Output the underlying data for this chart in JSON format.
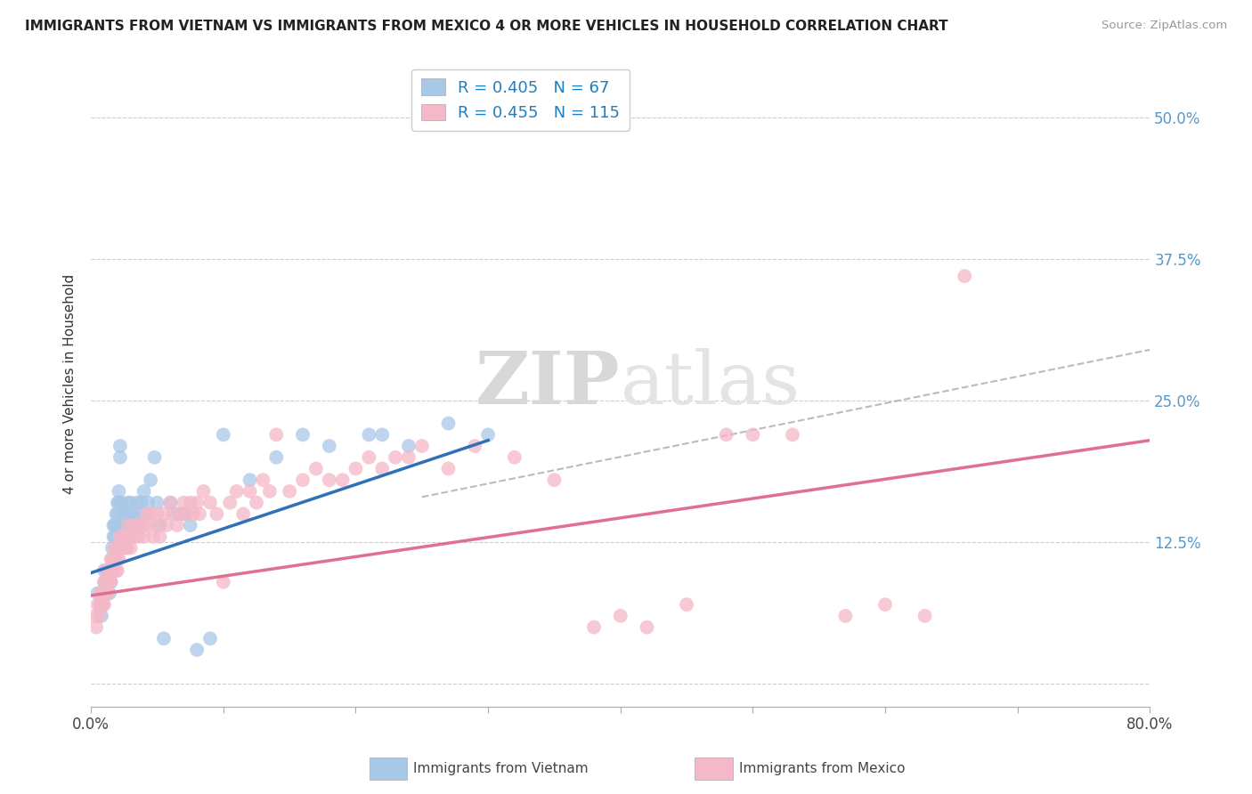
{
  "title": "IMMIGRANTS FROM VIETNAM VS IMMIGRANTS FROM MEXICO 4 OR MORE VEHICLES IN HOUSEHOLD CORRELATION CHART",
  "source": "Source: ZipAtlas.com",
  "ylabel": "4 or more Vehicles in Household",
  "xlim": [
    0.0,
    0.8
  ],
  "ylim": [
    -0.02,
    0.55
  ],
  "xticks": [
    0.0,
    0.1,
    0.2,
    0.3,
    0.4,
    0.5,
    0.6,
    0.7,
    0.8
  ],
  "xticklabels": [
    "0.0%",
    "",
    "",
    "",
    "",
    "",
    "",
    "",
    "80.0%"
  ],
  "yticks_left": [
    0.0,
    0.125,
    0.25,
    0.375,
    0.5
  ],
  "yticks_right": [
    0.0,
    0.125,
    0.25,
    0.375,
    0.5
  ],
  "yticklabels_right": [
    "",
    "12.5%",
    "25.0%",
    "37.5%",
    "50.0%"
  ],
  "legend_vietnam_R": "0.405",
  "legend_vietnam_N": "67",
  "legend_mexico_R": "0.455",
  "legend_mexico_N": "115",
  "color_vietnam": "#a8c8e8",
  "color_mexico": "#f4b8c8",
  "color_line_vietnam": "#3070b8",
  "color_line_mexico": "#e07090",
  "watermark_zip": "ZIP",
  "watermark_atlas": "atlas",
  "vietnam_x": [
    0.005,
    0.007,
    0.008,
    0.01,
    0.01,
    0.01,
    0.012,
    0.012,
    0.013,
    0.013,
    0.014,
    0.014,
    0.015,
    0.015,
    0.015,
    0.016,
    0.017,
    0.017,
    0.018,
    0.018,
    0.019,
    0.019,
    0.02,
    0.02,
    0.021,
    0.021,
    0.022,
    0.022,
    0.023,
    0.023,
    0.025,
    0.025,
    0.027,
    0.027,
    0.028,
    0.028,
    0.03,
    0.03,
    0.032,
    0.033,
    0.035,
    0.035,
    0.038,
    0.04,
    0.04,
    0.043,
    0.045,
    0.048,
    0.05,
    0.052,
    0.055,
    0.06,
    0.065,
    0.07,
    0.075,
    0.08,
    0.09,
    0.1,
    0.12,
    0.14,
    0.16,
    0.18,
    0.21,
    0.22,
    0.24,
    0.27,
    0.3
  ],
  "vietnam_y": [
    0.08,
    0.07,
    0.06,
    0.08,
    0.09,
    0.1,
    0.09,
    0.1,
    0.1,
    0.09,
    0.08,
    0.09,
    0.09,
    0.1,
    0.1,
    0.12,
    0.13,
    0.14,
    0.13,
    0.14,
    0.15,
    0.14,
    0.16,
    0.15,
    0.17,
    0.16,
    0.21,
    0.2,
    0.16,
    0.14,
    0.15,
    0.13,
    0.14,
    0.12,
    0.16,
    0.15,
    0.15,
    0.16,
    0.14,
    0.15,
    0.16,
    0.14,
    0.16,
    0.15,
    0.17,
    0.16,
    0.18,
    0.2,
    0.16,
    0.14,
    0.04,
    0.16,
    0.15,
    0.15,
    0.14,
    0.03,
    0.04,
    0.22,
    0.18,
    0.2,
    0.22,
    0.21,
    0.22,
    0.22,
    0.21,
    0.23,
    0.22
  ],
  "mexico_x": [
    0.003,
    0.004,
    0.005,
    0.006,
    0.007,
    0.007,
    0.008,
    0.008,
    0.009,
    0.009,
    0.01,
    0.01,
    0.01,
    0.01,
    0.011,
    0.011,
    0.012,
    0.012,
    0.012,
    0.013,
    0.013,
    0.013,
    0.014,
    0.014,
    0.015,
    0.015,
    0.015,
    0.016,
    0.016,
    0.017,
    0.017,
    0.018,
    0.018,
    0.019,
    0.019,
    0.02,
    0.02,
    0.02,
    0.021,
    0.021,
    0.022,
    0.022,
    0.023,
    0.024,
    0.025,
    0.025,
    0.026,
    0.027,
    0.028,
    0.03,
    0.03,
    0.032,
    0.033,
    0.035,
    0.036,
    0.038,
    0.04,
    0.04,
    0.042,
    0.043,
    0.045,
    0.047,
    0.05,
    0.05,
    0.052,
    0.055,
    0.057,
    0.06,
    0.062,
    0.065,
    0.068,
    0.07,
    0.072,
    0.075,
    0.077,
    0.08,
    0.082,
    0.085,
    0.09,
    0.095,
    0.1,
    0.105,
    0.11,
    0.115,
    0.12,
    0.125,
    0.13,
    0.135,
    0.14,
    0.15,
    0.16,
    0.17,
    0.18,
    0.19,
    0.2,
    0.21,
    0.22,
    0.23,
    0.24,
    0.25,
    0.27,
    0.29,
    0.32,
    0.35,
    0.38,
    0.4,
    0.42,
    0.45,
    0.48,
    0.5,
    0.53,
    0.57,
    0.6,
    0.63,
    0.66
  ],
  "mexico_y": [
    0.06,
    0.05,
    0.07,
    0.06,
    0.07,
    0.08,
    0.07,
    0.08,
    0.08,
    0.07,
    0.08,
    0.09,
    0.08,
    0.07,
    0.09,
    0.08,
    0.09,
    0.1,
    0.08,
    0.09,
    0.1,
    0.09,
    0.1,
    0.09,
    0.1,
    0.11,
    0.09,
    0.11,
    0.1,
    0.11,
    0.1,
    0.11,
    0.12,
    0.1,
    0.12,
    0.11,
    0.12,
    0.1,
    0.12,
    0.11,
    0.13,
    0.12,
    0.12,
    0.13,
    0.13,
    0.12,
    0.13,
    0.12,
    0.14,
    0.13,
    0.12,
    0.14,
    0.13,
    0.14,
    0.13,
    0.14,
    0.13,
    0.14,
    0.15,
    0.14,
    0.15,
    0.13,
    0.15,
    0.14,
    0.13,
    0.15,
    0.14,
    0.16,
    0.15,
    0.14,
    0.15,
    0.16,
    0.15,
    0.16,
    0.15,
    0.16,
    0.15,
    0.17,
    0.16,
    0.15,
    0.09,
    0.16,
    0.17,
    0.15,
    0.17,
    0.16,
    0.18,
    0.17,
    0.22,
    0.17,
    0.18,
    0.19,
    0.18,
    0.18,
    0.19,
    0.2,
    0.19,
    0.2,
    0.2,
    0.21,
    0.19,
    0.21,
    0.2,
    0.18,
    0.05,
    0.06,
    0.05,
    0.07,
    0.22,
    0.22,
    0.22,
    0.06,
    0.07,
    0.06,
    0.36
  ],
  "viet_line_x0": 0.0,
  "viet_line_y0": 0.098,
  "viet_line_x1": 0.3,
  "viet_line_y1": 0.215,
  "mex_line_x0": 0.0,
  "mex_line_y0": 0.078,
  "mex_line_x1": 0.8,
  "mex_line_y1": 0.215,
  "dash_line_x0": 0.25,
  "dash_line_y0": 0.165,
  "dash_line_x1": 0.8,
  "dash_line_y1": 0.295
}
